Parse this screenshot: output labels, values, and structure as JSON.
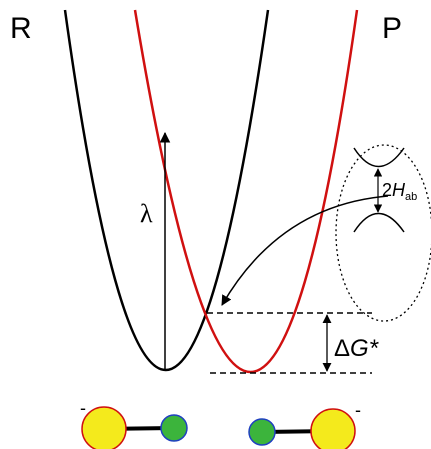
{
  "labels": {
    "reactant": "R",
    "product": "P",
    "lambda": "λ"
  },
  "coupling": {
    "prefix": "2",
    "symbol": "H",
    "subscript": "ab"
  },
  "barrier": {
    "delta": "Δ",
    "symbol": "G*"
  },
  "charges": [
    "-",
    "-"
  ]
}
